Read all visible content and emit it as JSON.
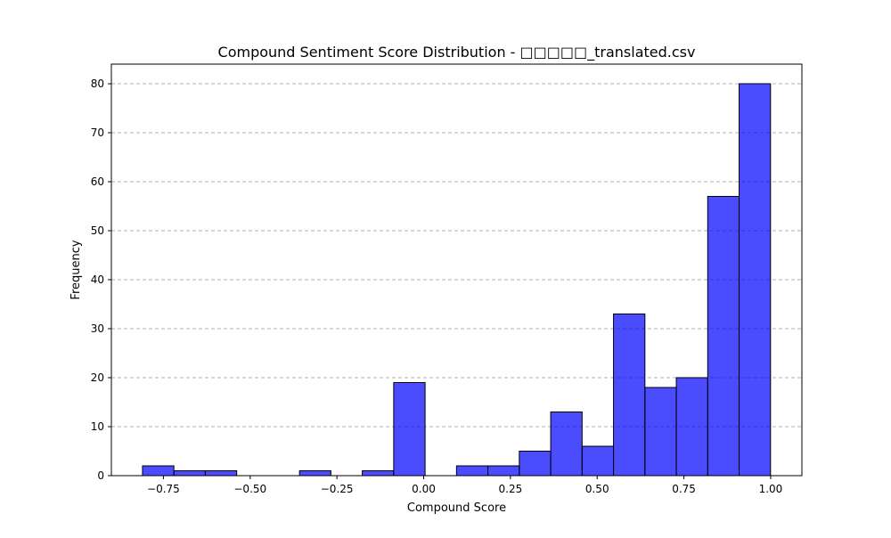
{
  "chart_data": {
    "type": "bar",
    "title": "Compound Sentiment Score Distribution - □□□□□_translated.csv",
    "xlabel": "Compound Score",
    "ylabel": "Frequency",
    "xlim": [
      -0.9,
      1.09
    ],
    "ylim": [
      0,
      84
    ],
    "grid": "y-dashed",
    "x_ticks": [
      -0.75,
      -0.5,
      -0.25,
      0.0,
      0.25,
      0.5,
      0.75,
      1.0
    ],
    "x_tick_labels": [
      "−0.75",
      "−0.50",
      "−0.25",
      "0.00",
      "0.25",
      "0.50",
      "0.75",
      "1.00"
    ],
    "y_ticks": [
      0,
      10,
      20,
      30,
      40,
      50,
      60,
      70,
      80
    ],
    "y_tick_labels": [
      "0",
      "10",
      "20",
      "30",
      "40",
      "50",
      "60",
      "70",
      "80"
    ],
    "bar_color": "#0000ff",
    "bar_opacity": 0.7,
    "edge_color": "#000000",
    "bins": [
      {
        "start": -0.8103,
        "end": -0.7198,
        "count": 2
      },
      {
        "start": -0.7198,
        "end": -0.6293,
        "count": 1
      },
      {
        "start": -0.6293,
        "end": -0.5388,
        "count": 1
      },
      {
        "start": -0.5388,
        "end": -0.4483,
        "count": 0
      },
      {
        "start": -0.4483,
        "end": -0.3578,
        "count": 0
      },
      {
        "start": -0.3578,
        "end": -0.2674,
        "count": 1
      },
      {
        "start": -0.2674,
        "end": -0.1769,
        "count": 0
      },
      {
        "start": -0.1769,
        "end": -0.0864,
        "count": 1
      },
      {
        "start": -0.0864,
        "end": 0.0041,
        "count": 19
      },
      {
        "start": 0.0041,
        "end": 0.0946,
        "count": 0
      },
      {
        "start": 0.0946,
        "end": 0.1851,
        "count": 2
      },
      {
        "start": 0.1851,
        "end": 0.2756,
        "count": 2
      },
      {
        "start": 0.2756,
        "end": 0.3661,
        "count": 5
      },
      {
        "start": 0.3661,
        "end": 0.4566,
        "count": 13
      },
      {
        "start": 0.4566,
        "end": 0.5471,
        "count": 6
      },
      {
        "start": 0.5471,
        "end": 0.6376,
        "count": 33
      },
      {
        "start": 0.6376,
        "end": 0.7281,
        "count": 18
      },
      {
        "start": 0.7281,
        "end": 0.8186,
        "count": 20
      },
      {
        "start": 0.8186,
        "end": 0.9091,
        "count": 57
      },
      {
        "start": 0.9091,
        "end": 0.9996,
        "count": 80
      }
    ]
  }
}
